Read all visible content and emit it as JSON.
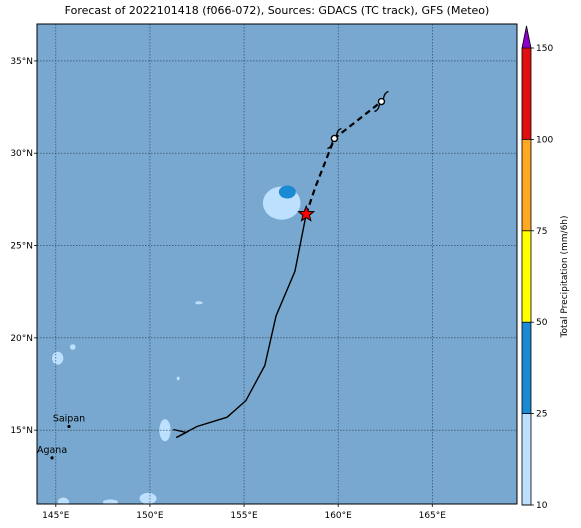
{
  "title": "Forecast of 2022101418 (f066-072), Sources: GDACS (TC track), GFS (Meteo)",
  "map": {
    "lon_range": [
      144,
      169.5
    ],
    "lat_range": [
      11,
      37
    ],
    "lon_ticks": [
      145,
      150,
      155,
      160,
      165
    ],
    "lat_ticks": [
      15,
      20,
      25,
      30,
      35
    ],
    "lon_tick_labels": [
      "145°E",
      "150°E",
      "155°E",
      "160°E",
      "165°E"
    ],
    "lat_tick_labels": [
      "15°N",
      "20°N",
      "25°N",
      "30°N",
      "35°N"
    ],
    "gridlines": true,
    "ocean_color": "#78a8cf"
  },
  "cities": [
    {
      "name": "Saipan",
      "lon": 145.7,
      "lat": 15.2
    },
    {
      "name": "Agana",
      "lon": 144.8,
      "lat": 13.5
    }
  ],
  "track": {
    "past": [
      [
        151.4,
        14.6
      ],
      [
        152.5,
        15.2
      ],
      [
        154.1,
        15.7
      ],
      [
        155.1,
        16.6
      ],
      [
        156.1,
        18.5
      ],
      [
        156.7,
        21.2
      ],
      [
        157.7,
        23.6
      ],
      [
        158.3,
        26.7
      ]
    ],
    "forecast": [
      [
        158.3,
        26.7
      ],
      [
        158.8,
        28.2
      ],
      [
        159.8,
        30.8
      ],
      [
        162.3,
        32.8
      ]
    ],
    "current": [
      158.3,
      26.7
    ],
    "cyclone_symbols": [
      [
        159.8,
        30.8
      ],
      [
        162.3,
        32.8
      ]
    ],
    "track_color": "#000000",
    "current_marker_color": "#ff0000"
  },
  "precipitation": {
    "areas": [
      {
        "lon": 157.0,
        "lat": 27.3,
        "r_lon": 1.0,
        "r_lat": 0.9,
        "level": 25
      },
      {
        "lon": 157.3,
        "lat": 27.9,
        "r_lon": 0.45,
        "r_lat": 0.35,
        "level": 50
      },
      {
        "lon": 145.1,
        "lat": 18.9,
        "r_lon": 0.3,
        "r_lat": 0.35,
        "level": 25
      },
      {
        "lon": 145.9,
        "lat": 19.5,
        "r_lon": 0.15,
        "r_lat": 0.15,
        "level": 25
      },
      {
        "lon": 150.8,
        "lat": 15.0,
        "r_lon": 0.3,
        "r_lat": 0.6,
        "level": 25
      },
      {
        "lon": 149.9,
        "lat": 11.3,
        "r_lon": 0.45,
        "r_lat": 0.3,
        "level": 25
      },
      {
        "lon": 147.9,
        "lat": 11.1,
        "r_lon": 0.4,
        "r_lat": 0.15,
        "level": 25
      },
      {
        "lon": 145.4,
        "lat": 11.1,
        "r_lon": 0.3,
        "r_lat": 0.25,
        "level": 25
      },
      {
        "lon": 152.6,
        "lat": 21.9,
        "r_lon": 0.2,
        "r_lat": 0.08,
        "level": 25
      },
      {
        "lon": 151.5,
        "lat": 17.8,
        "r_lon": 0.08,
        "r_lat": 0.1,
        "level": 25
      }
    ]
  },
  "colorbar": {
    "label": "Total Precipitation (mm/6h)",
    "levels": [
      10,
      25,
      50,
      75,
      100,
      150
    ],
    "tick_labels": [
      "10",
      "25",
      "50",
      "75",
      "100",
      "150"
    ],
    "colors": [
      "#bde0ff",
      "#1a8ad4",
      "#ffff00",
      "#ffa821",
      "#e01010"
    ],
    "extend_color": "#8a00c8"
  }
}
